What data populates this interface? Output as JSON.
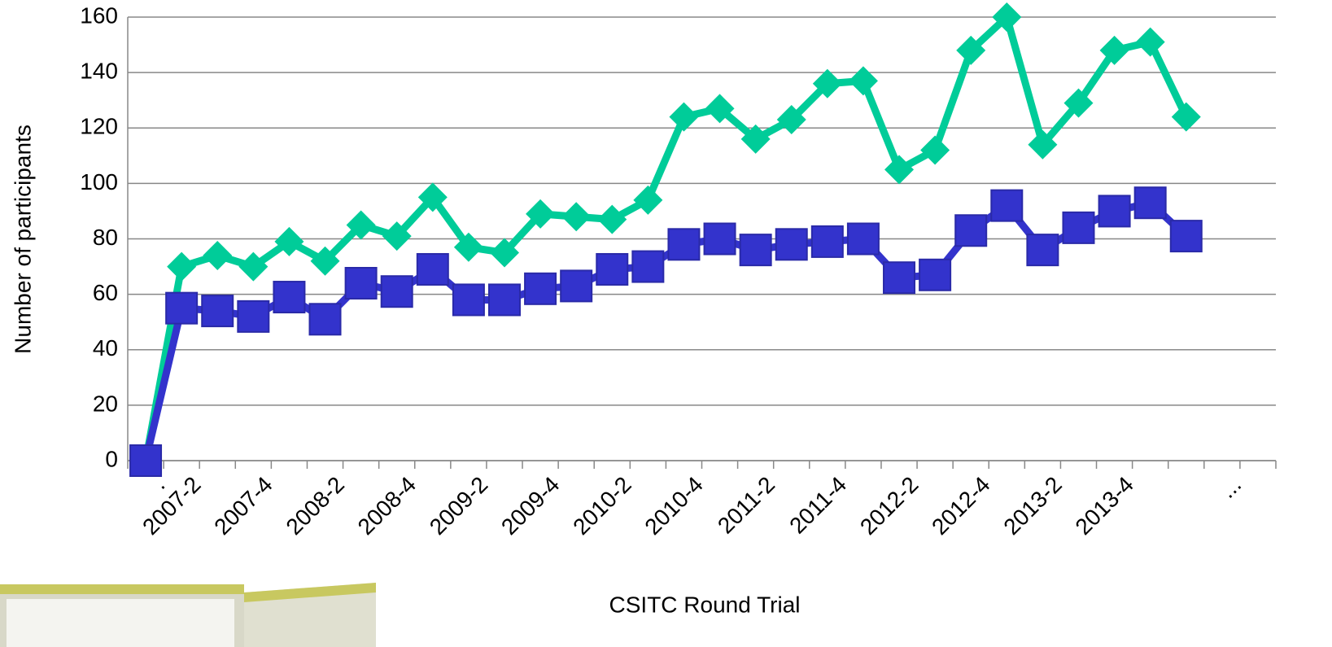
{
  "chart_data": {
    "type": "line",
    "x_label": "CSITC Round Trial",
    "y_label": "Number of participants",
    "categories": [
      ".",
      "2007-2",
      null,
      "2007-4",
      null,
      "2008-2",
      null,
      "2008-4",
      null,
      "2009-2",
      null,
      "2009-4",
      null,
      "2010-2",
      null,
      "2010-4",
      null,
      "2011-2",
      null,
      "2011-4",
      null,
      "2012-2",
      null,
      "2012-4",
      null,
      "2013-2",
      null,
      "2013-4",
      null,
      null,
      "...",
      null
    ],
    "series": [
      {
        "color": "#00cc99",
        "marker": "diamond",
        "values": [
          0,
          70,
          74,
          70,
          79,
          72,
          85,
          81,
          95,
          77,
          75,
          89,
          88,
          87,
          94,
          124,
          127,
          116,
          123,
          136,
          137,
          105,
          112,
          148,
          160,
          114,
          129,
          148,
          151,
          124,
          null,
          null
        ]
      },
      {
        "color": "#3333cc",
        "marker": "square",
        "values": [
          0,
          55,
          54,
          52,
          59,
          51,
          64,
          61,
          69,
          58,
          58,
          62,
          63,
          69,
          70,
          78,
          80,
          76,
          78,
          79,
          80,
          66,
          67,
          83,
          92,
          76,
          84,
          90,
          93,
          81,
          null,
          null
        ]
      }
    ],
    "ylim": [
      0,
      160
    ],
    "yticks": [
      0,
      20,
      40,
      60,
      80,
      100,
      120,
      140,
      160
    ],
    "grid": true
  }
}
